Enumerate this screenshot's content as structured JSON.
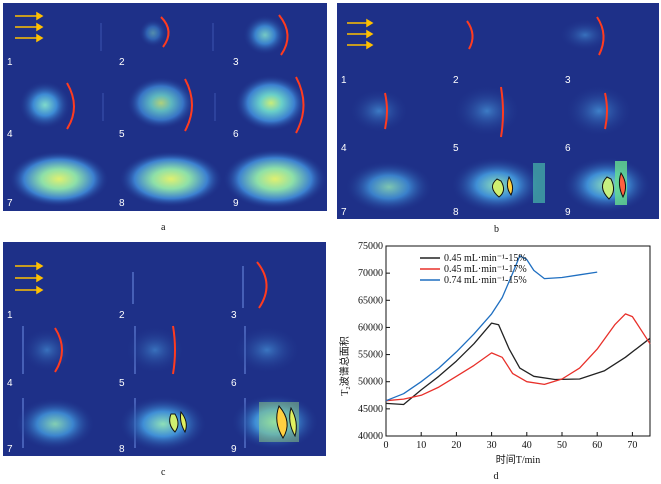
{
  "panels": [
    {
      "label": "a",
      "cells": [
        "1",
        "2",
        "3",
        "4",
        "5",
        "6",
        "7",
        "8",
        "9"
      ]
    },
    {
      "label": "b",
      "cells": [
        "1",
        "2",
        "3",
        "4",
        "5",
        "6",
        "7",
        "8",
        "9"
      ]
    },
    {
      "label": "c",
      "cells": [
        "1",
        "2",
        "3",
        "4",
        "5",
        "6",
        "7",
        "8",
        "9"
      ]
    }
  ],
  "chart_label": "d",
  "colors": {
    "panel_bg": "#1e3088",
    "arrow": "#ffc000",
    "front": "#ff3b1f",
    "s1": "#222222",
    "s2": "#e8302a",
    "s3": "#1f6fc1"
  },
  "chart_data": {
    "type": "line",
    "ylabel": "T₂波谱总面积",
    "xlabel": "时间T/min",
    "xlim": [
      0,
      75
    ],
    "ylim": [
      40000,
      75000
    ],
    "xticks": [
      0,
      10,
      20,
      30,
      40,
      50,
      60,
      70
    ],
    "yticks": [
      40000,
      45000,
      50000,
      55000,
      60000,
      65000,
      70000,
      75000
    ],
    "legend_position": "top-left",
    "series": [
      {
        "name": "0.45 mL·min⁻¹-15%",
        "color": "#222222",
        "x": [
          0,
          5,
          10,
          15,
          20,
          25,
          30,
          32,
          35,
          38,
          42,
          48,
          55,
          62,
          68,
          75
        ],
        "y": [
          46000,
          45800,
          48500,
          51000,
          53800,
          57000,
          60800,
          60500,
          56000,
          52500,
          51000,
          50400,
          50500,
          52000,
          54500,
          58000
        ]
      },
      {
        "name": "0.45 mL·min⁻¹-17%",
        "color": "#e8302a",
        "x": [
          0,
          5,
          10,
          15,
          20,
          25,
          30,
          33,
          36,
          40,
          45,
          50,
          55,
          60,
          65,
          68,
          70,
          75
        ],
        "y": [
          46500,
          46800,
          47500,
          49000,
          51000,
          53000,
          55300,
          54500,
          51500,
          50000,
          49500,
          50500,
          52500,
          56000,
          60500,
          62500,
          62000,
          57000
        ]
      },
      {
        "name": "0.74 mL·min⁻¹-15%",
        "color": "#1f6fc1",
        "x": [
          0,
          5,
          10,
          15,
          20,
          25,
          30,
          33,
          36,
          38,
          40,
          42,
          45,
          50,
          55,
          60
        ],
        "y": [
          46500,
          47800,
          50000,
          52500,
          55500,
          58800,
          62500,
          65500,
          70000,
          73200,
          72500,
          70500,
          69000,
          69200,
          69700,
          70200
        ]
      }
    ]
  }
}
